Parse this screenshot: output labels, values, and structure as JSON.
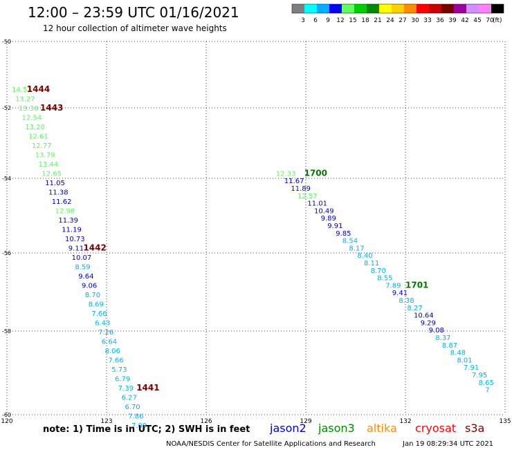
{
  "header": {
    "title": "12:00 – 23:59 UTC 01/16/2021",
    "subtitle": "12 hour collection of altimeter wave heights"
  },
  "legend": {
    "unit": "(ft)",
    "bins": [
      {
        "label": "3",
        "color": "#7f7f7f"
      },
      {
        "label": "6",
        "color": "#00ffff"
      },
      {
        "label": "9",
        "color": "#00b0ff"
      },
      {
        "label": "12",
        "color": "#0000ff"
      },
      {
        "label": "15",
        "color": "#5fff5f"
      },
      {
        "label": "18",
        "color": "#00d000"
      },
      {
        "label": "21",
        "color": "#008a00"
      },
      {
        "label": "24",
        "color": "#ffff00"
      },
      {
        "label": "27",
        "color": "#ffd000"
      },
      {
        "label": "30",
        "color": "#ff8c00"
      },
      {
        "label": "33",
        "color": "#ff0000"
      },
      {
        "label": "36",
        "color": "#c80000"
      },
      {
        "label": "39",
        "color": "#7a0000"
      },
      {
        "label": "42",
        "color": "#a000a0"
      },
      {
        "label": "45",
        "color": "#d090ff"
      },
      {
        "label": "70",
        "color": "#ff80ff"
      },
      {
        "label": "",
        "color": "#000000"
      }
    ]
  },
  "axes": {
    "x_ticks": [
      "120",
      "123",
      "126",
      "129",
      "132",
      "135"
    ],
    "y_ticks": [
      "-50",
      "-52",
      "-54",
      "-56",
      "-58",
      "-60"
    ]
  },
  "track_colors": {
    "lightblue": "#00b4e6",
    "navy": "#0000b4",
    "lightgreen": "#66ee66",
    "green": "#007800",
    "darkred": "#780000"
  },
  "tracks": [
    {
      "satellite": "left",
      "points": [
        {
          "lon": 120.15,
          "lat": -51.35,
          "value": "14.53",
          "c": "lightgreen"
        },
        {
          "lon": 120.25,
          "lat": -51.6,
          "value": "13.27",
          "c": "lightgreen"
        },
        {
          "lon": 120.35,
          "lat": -51.85,
          "value": "13.36",
          "c": "lightgreen"
        },
        {
          "lon": 120.45,
          "lat": -52.1,
          "value": "12.54",
          "c": "lightgreen"
        },
        {
          "lon": 120.55,
          "lat": -52.35,
          "value": "13.20",
          "c": "lightgreen"
        },
        {
          "lon": 120.65,
          "lat": -52.6,
          "value": "12.61",
          "c": "lightgreen"
        },
        {
          "lon": 120.75,
          "lat": -52.85,
          "value": "12.77",
          "c": "lightgreen"
        },
        {
          "lon": 120.85,
          "lat": -53.1,
          "value": "13.79",
          "c": "lightgreen"
        },
        {
          "lon": 120.95,
          "lat": -53.35,
          "value": "13.44",
          "c": "lightgreen"
        },
        {
          "lon": 121.05,
          "lat": -53.6,
          "value": "12.65",
          "c": "lightgreen"
        },
        {
          "lon": 121.15,
          "lat": -53.85,
          "value": "11.05",
          "c": "navy"
        },
        {
          "lon": 121.25,
          "lat": -54.1,
          "value": "11.38",
          "c": "navy"
        },
        {
          "lon": 121.35,
          "lat": -54.35,
          "value": "11.62",
          "c": "navy"
        },
        {
          "lon": 121.45,
          "lat": -54.6,
          "value": "12.98",
          "c": "lightgreen"
        },
        {
          "lon": 121.55,
          "lat": -54.85,
          "value": "11.39",
          "c": "navy"
        },
        {
          "lon": 121.65,
          "lat": -55.1,
          "value": "11.19",
          "c": "navy"
        },
        {
          "lon": 121.75,
          "lat": -55.35,
          "value": "10.73",
          "c": "navy"
        },
        {
          "lon": 121.85,
          "lat": -55.6,
          "value": "9.11",
          "c": "navy"
        },
        {
          "lon": 121.95,
          "lat": -55.85,
          "value": "10.07",
          "c": "navy"
        },
        {
          "lon": 122.05,
          "lat": -56.1,
          "value": "8.59",
          "c": "lightblue"
        },
        {
          "lon": 122.15,
          "lat": -56.35,
          "value": "9.64",
          "c": "navy"
        },
        {
          "lon": 122.25,
          "lat": -56.6,
          "value": "9.06",
          "c": "navy"
        },
        {
          "lon": 122.35,
          "lat": -56.85,
          "value": "8.70",
          "c": "lightblue"
        },
        {
          "lon": 122.45,
          "lat": -57.1,
          "value": "8.69",
          "c": "lightblue"
        },
        {
          "lon": 122.55,
          "lat": -57.35,
          "value": "7.66",
          "c": "lightblue"
        },
        {
          "lon": 122.65,
          "lat": -57.6,
          "value": "6.43",
          "c": "lightblue"
        },
        {
          "lon": 122.75,
          "lat": -57.85,
          "value": "7.26",
          "c": "lightblue"
        },
        {
          "lon": 122.85,
          "lat": -58.1,
          "value": "6.64",
          "c": "lightblue"
        },
        {
          "lon": 122.95,
          "lat": -58.35,
          "value": "8.06",
          "c": "lightblue"
        },
        {
          "lon": 123.05,
          "lat": -58.6,
          "value": "7.66",
          "c": "lightblue"
        },
        {
          "lon": 123.15,
          "lat": -58.85,
          "value": "5.73",
          "c": "lightblue"
        },
        {
          "lon": 123.25,
          "lat": -59.1,
          "value": "6.79",
          "c": "lightblue"
        },
        {
          "lon": 123.35,
          "lat": -59.35,
          "value": "7.39",
          "c": "lightblue"
        },
        {
          "lon": 123.45,
          "lat": -59.6,
          "value": "6.27",
          "c": "lightblue"
        },
        {
          "lon": 123.55,
          "lat": -59.85,
          "value": "6.70",
          "c": "lightblue"
        },
        {
          "lon": 123.65,
          "lat": -60.1,
          "value": "7.86",
          "c": "lightblue"
        },
        {
          "lon": 123.75,
          "lat": -60.35,
          "value": "7.09",
          "c": "lightblue"
        }
      ]
    },
    {
      "satellite": "right",
      "points": [
        {
          "lon": 128.1,
          "lat": -53.6,
          "value": "12.33",
          "c": "lightgreen"
        },
        {
          "lon": 128.35,
          "lat": -53.8,
          "value": "11.67",
          "c": "navy"
        },
        {
          "lon": 128.55,
          "lat": -54.0,
          "value": "11.89",
          "c": "navy"
        },
        {
          "lon": 128.75,
          "lat": -54.2,
          "value": "12.57",
          "c": "lightgreen"
        },
        {
          "lon": 129.05,
          "lat": -54.4,
          "value": "11.01",
          "c": "navy"
        },
        {
          "lon": 129.25,
          "lat": -54.6,
          "value": "10.49",
          "c": "navy"
        },
        {
          "lon": 129.45,
          "lat": -54.8,
          "value": "9.89",
          "c": "navy"
        },
        {
          "lon": 129.65,
          "lat": -55.0,
          "value": "9.91",
          "c": "navy"
        },
        {
          "lon": 129.9,
          "lat": -55.2,
          "value": "9.85",
          "c": "navy"
        },
        {
          "lon": 130.1,
          "lat": -55.4,
          "value": "8.54",
          "c": "lightblue"
        },
        {
          "lon": 130.3,
          "lat": -55.6,
          "value": "8.17",
          "c": "lightblue"
        },
        {
          "lon": 130.55,
          "lat": -55.8,
          "value": "8.40",
          "c": "lightblue"
        },
        {
          "lon": 130.75,
          "lat": -56.0,
          "value": "8.11",
          "c": "lightblue"
        },
        {
          "lon": 130.95,
          "lat": -56.2,
          "value": "8.70",
          "c": "lightblue"
        },
        {
          "lon": 131.15,
          "lat": -56.4,
          "value": "8.55",
          "c": "lightblue"
        },
        {
          "lon": 131.4,
          "lat": -56.6,
          "value": "7.89",
          "c": "lightblue"
        },
        {
          "lon": 131.6,
          "lat": -56.8,
          "value": "9.41",
          "c": "navy"
        },
        {
          "lon": 131.8,
          "lat": -57.0,
          "value": "8.38",
          "c": "lightblue"
        },
        {
          "lon": 132.05,
          "lat": -57.2,
          "value": "8.27",
          "c": "lightblue"
        },
        {
          "lon": 132.25,
          "lat": -57.4,
          "value": "10.64",
          "c": "navy"
        },
        {
          "lon": 132.45,
          "lat": -57.6,
          "value": "9.29",
          "c": "navy"
        },
        {
          "lon": 132.7,
          "lat": -57.8,
          "value": "9.08",
          "c": "navy"
        },
        {
          "lon": 132.9,
          "lat": -58.0,
          "value": "8.37",
          "c": "lightblue"
        },
        {
          "lon": 133.1,
          "lat": -58.2,
          "value": "8.87",
          "c": "lightblue"
        },
        {
          "lon": 133.35,
          "lat": -58.4,
          "value": "8.48",
          "c": "lightblue"
        },
        {
          "lon": 133.55,
          "lat": -58.6,
          "value": "8.01",
          "c": "lightblue"
        },
        {
          "lon": 133.75,
          "lat": -58.8,
          "value": "7.91",
          "c": "lightblue"
        },
        {
          "lon": 134.0,
          "lat": -59.0,
          "value": "7.95",
          "c": "lightblue"
        },
        {
          "lon": 134.2,
          "lat": -59.2,
          "value": "8.65",
          "c": "lightblue"
        },
        {
          "lon": 134.4,
          "lat": -59.4,
          "value": "7",
          "c": "lightblue"
        }
      ]
    }
  ],
  "time_markers": [
    {
      "label": "1444",
      "lon": 120.6,
      "lat": -51.35,
      "c": "darkred"
    },
    {
      "label": "1443",
      "lon": 121.0,
      "lat": -51.85,
      "c": "darkred"
    },
    {
      "label": "1442",
      "lon": 122.3,
      "lat": -55.6,
      "c": "darkred"
    },
    {
      "label": "1441",
      "lon": 123.9,
      "lat": -59.35,
      "c": "darkred"
    },
    {
      "label": "1700",
      "lon": 128.95,
      "lat": -53.6,
      "c": "green"
    },
    {
      "label": "1701",
      "lon": 132.0,
      "lat": -56.6,
      "c": "green"
    }
  ],
  "footer": {
    "note": "note:  1) Time is in UTC; 2) SWH is in feet",
    "satellites": [
      {
        "name": "jason2",
        "color": "#0000cc"
      },
      {
        "name": "jason3",
        "color": "#008a00"
      },
      {
        "name": "altika",
        "color": "#ff8c00"
      },
      {
        "name": "cryosat",
        "color": "#ff0000"
      },
      {
        "name": "s3a",
        "color": "#780000"
      }
    ],
    "credit": "NOAA/NESDIS Center for Satellite Applications and Research",
    "timestamp": "Jan 19 08:29:34 UTC 2021"
  }
}
